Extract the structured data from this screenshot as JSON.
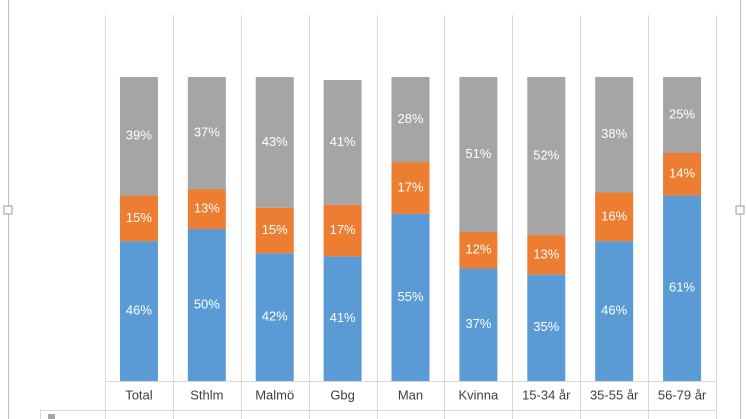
{
  "chart_data": {
    "type": "stacked-bar",
    "categories": [
      "Total",
      "Sthlm",
      "Malmö",
      "Gbg",
      "Man",
      "Kvinna",
      "15-34 år",
      "35-55 år",
      "56-79 år"
    ],
    "series": [
      {
        "color": "#5b9bd5",
        "values": [
          46,
          50,
          42,
          41,
          55,
          37,
          35,
          46,
          61
        ],
        "value_labels": [
          "46%",
          "50%",
          "42%",
          "41%",
          "55%",
          "37%",
          "35%",
          "46%",
          "61%"
        ]
      },
      {
        "color": "#ed7d31",
        "values": [
          15,
          13,
          15,
          17,
          17,
          12,
          13,
          16,
          14
        ],
        "value_labels": [
          "15%",
          "13%",
          "15%",
          "17%",
          "17%",
          "12%",
          "13%",
          "16%",
          "14%"
        ]
      },
      {
        "color": "#a5a5a5",
        "values": [
          39,
          37,
          43,
          41,
          28,
          51,
          52,
          38,
          25
        ],
        "value_labels": [
          "39%",
          "37%",
          "43%",
          "41%",
          "28%",
          "51%",
          "52%",
          "38%",
          "25%"
        ]
      }
    ],
    "ylim": [
      0,
      100
    ]
  }
}
